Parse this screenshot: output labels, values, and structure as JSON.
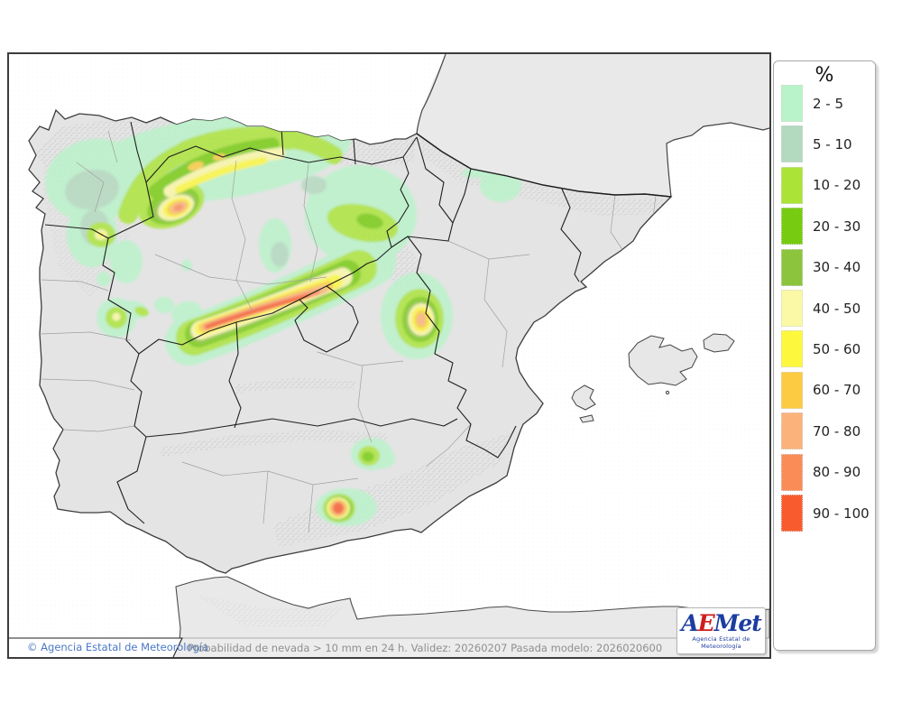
{
  "legend": {
    "title": "%",
    "entries": [
      {
        "label": "2 - 5",
        "color": "#b9f3c9"
      },
      {
        "label": "5 - 10",
        "color": "#b3d9bf"
      },
      {
        "label": "10 - 20",
        "color": "#abe437"
      },
      {
        "label": "20 - 30",
        "color": "#77cb11"
      },
      {
        "label": "30 - 40",
        "color": "#8cc43e"
      },
      {
        "label": "40 - 50",
        "color": "#fbf8a6"
      },
      {
        "label": "50 - 60",
        "color": "#fdf83e"
      },
      {
        "label": "60 - 70",
        "color": "#fccb42"
      },
      {
        "label": "70 - 80",
        "color": "#fbb37b"
      },
      {
        "label": "80 - 90",
        "color": "#fa8c58"
      },
      {
        "label": "90 - 100",
        "color": "#f85c2e"
      }
    ]
  },
  "footer": {
    "copyright": "© Agencia Estatal de Meteorología",
    "caption": "Probabilidad de nevada > 10 mm en 24 h. Validez: 20260207 Pasada modelo: 2026020600",
    "copyright_color": "#4a78c4",
    "caption_color": "#8f8f8f"
  },
  "logo": {
    "part_a": "A",
    "part_e": "E",
    "part_met": "Met",
    "subtitle": "Agencia Estatal de Meteorología",
    "blue": "#1c3da0",
    "red": "#cf1d1d"
  }
}
